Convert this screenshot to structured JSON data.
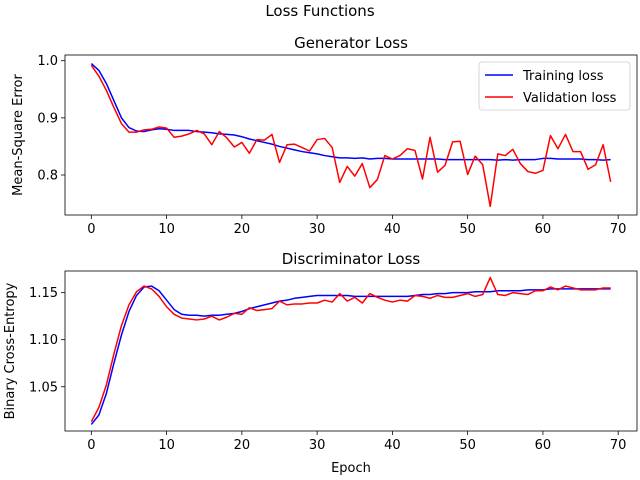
{
  "figure_title": "Loss Functions",
  "chart_data": [
    {
      "type": "line",
      "title": "Generator Loss",
      "xlabel": "",
      "ylabel": "Mean-Square Error",
      "xlim": [
        -3.5,
        72.5
      ],
      "ylim": [
        0.73,
        1.01
      ],
      "xticks": [
        0,
        10,
        20,
        30,
        40,
        50,
        60,
        70
      ],
      "yticks": [
        0.8,
        0.9,
        1.0
      ],
      "ytick_labels": [
        "0.8",
        "0.9",
        "1.0"
      ],
      "grid": false,
      "legend": "top-right",
      "series": [
        {
          "name": "Training loss",
          "color": "#0000ff",
          "x": [
            0,
            1,
            2,
            3,
            4,
            5,
            6,
            7,
            8,
            9,
            10,
            11,
            12,
            13,
            14,
            15,
            16,
            17,
            18,
            19,
            20,
            21,
            22,
            23,
            24,
            25,
            26,
            27,
            28,
            29,
            30,
            31,
            32,
            33,
            34,
            35,
            36,
            37,
            38,
            39,
            40,
            41,
            42,
            43,
            44,
            45,
            46,
            47,
            48,
            49,
            50,
            51,
            52,
            53,
            54,
            55,
            56,
            57,
            58,
            59,
            60,
            61,
            62,
            63,
            64,
            65,
            66,
            67,
            68,
            69
          ],
          "values": [
            0.995,
            0.983,
            0.96,
            0.93,
            0.9,
            0.883,
            0.877,
            0.876,
            0.879,
            0.881,
            0.88,
            0.878,
            0.878,
            0.878,
            0.876,
            0.875,
            0.874,
            0.872,
            0.871,
            0.87,
            0.867,
            0.863,
            0.86,
            0.857,
            0.854,
            0.85,
            0.847,
            0.844,
            0.841,
            0.839,
            0.837,
            0.834,
            0.832,
            0.83,
            0.83,
            0.829,
            0.83,
            0.828,
            0.829,
            0.829,
            0.828,
            0.828,
            0.828,
            0.828,
            0.828,
            0.828,
            0.828,
            0.827,
            0.827,
            0.827,
            0.827,
            0.827,
            0.827,
            0.827,
            0.826,
            0.827,
            0.826,
            0.827,
            0.827,
            0.827,
            0.829,
            0.829,
            0.828,
            0.828,
            0.828,
            0.828,
            0.827,
            0.827,
            0.826,
            0.827
          ]
        },
        {
          "name": "Validation loss",
          "color": "#ff0000",
          "x": [
            0,
            1,
            2,
            3,
            4,
            5,
            6,
            7,
            8,
            9,
            10,
            11,
            12,
            13,
            14,
            15,
            16,
            17,
            18,
            19,
            20,
            21,
            22,
            23,
            24,
            25,
            26,
            27,
            28,
            29,
            30,
            31,
            32,
            33,
            34,
            35,
            36,
            37,
            38,
            39,
            40,
            41,
            42,
            43,
            44,
            45,
            46,
            47,
            48,
            49,
            50,
            51,
            52,
            53,
            54,
            55,
            56,
            57,
            58,
            59,
            60,
            61,
            62,
            63,
            64,
            65,
            66,
            67,
            68,
            69
          ],
          "values": [
            0.992,
            0.973,
            0.948,
            0.918,
            0.89,
            0.875,
            0.875,
            0.879,
            0.88,
            0.884,
            0.882,
            0.866,
            0.868,
            0.872,
            0.878,
            0.872,
            0.853,
            0.876,
            0.865,
            0.849,
            0.857,
            0.838,
            0.862,
            0.861,
            0.871,
            0.822,
            0.853,
            0.854,
            0.848,
            0.842,
            0.862,
            0.864,
            0.848,
            0.787,
            0.815,
            0.798,
            0.82,
            0.778,
            0.792,
            0.834,
            0.828,
            0.834,
            0.846,
            0.843,
            0.793,
            0.866,
            0.805,
            0.817,
            0.858,
            0.859,
            0.801,
            0.833,
            0.818,
            0.745,
            0.837,
            0.834,
            0.845,
            0.82,
            0.806,
            0.803,
            0.808,
            0.869,
            0.846,
            0.871,
            0.841,
            0.841,
            0.81,
            0.818,
            0.853,
            0.788
          ]
        }
      ]
    },
    {
      "type": "line",
      "title": "Discriminator Loss",
      "xlabel": "Epoch",
      "ylabel": "Binary Cross-Entropy",
      "xlim": [
        -3.5,
        72.5
      ],
      "ylim": [
        1.003,
        1.173
      ],
      "xticks": [
        0,
        10,
        20,
        30,
        40,
        50,
        60,
        70
      ],
      "yticks": [
        1.05,
        1.1,
        1.15
      ],
      "ytick_labels": [
        "1.05",
        "1.10",
        "1.15"
      ],
      "grid": false,
      "legend": "none",
      "series": [
        {
          "name": "Training loss",
          "color": "#0000ff",
          "x": [
            0,
            1,
            2,
            3,
            4,
            5,
            6,
            7,
            8,
            9,
            10,
            11,
            12,
            13,
            14,
            15,
            16,
            17,
            18,
            19,
            20,
            21,
            22,
            23,
            24,
            25,
            26,
            27,
            28,
            29,
            30,
            31,
            32,
            33,
            34,
            35,
            36,
            37,
            38,
            39,
            40,
            41,
            42,
            43,
            44,
            45,
            46,
            47,
            48,
            49,
            50,
            51,
            52,
            53,
            54,
            55,
            56,
            57,
            58,
            59,
            60,
            61,
            62,
            63,
            64,
            65,
            66,
            67,
            68,
            69
          ],
          "values": [
            1.01,
            1.02,
            1.043,
            1.075,
            1.105,
            1.13,
            1.147,
            1.156,
            1.157,
            1.152,
            1.142,
            1.132,
            1.127,
            1.126,
            1.126,
            1.125,
            1.126,
            1.126,
            1.127,
            1.128,
            1.13,
            1.133,
            1.135,
            1.137,
            1.139,
            1.141,
            1.142,
            1.144,
            1.145,
            1.146,
            1.147,
            1.147,
            1.147,
            1.147,
            1.147,
            1.146,
            1.146,
            1.146,
            1.146,
            1.146,
            1.146,
            1.146,
            1.146,
            1.147,
            1.148,
            1.148,
            1.149,
            1.149,
            1.15,
            1.15,
            1.15,
            1.151,
            1.151,
            1.151,
            1.152,
            1.152,
            1.152,
            1.152,
            1.153,
            1.153,
            1.153,
            1.154,
            1.154,
            1.154,
            1.154,
            1.154,
            1.154,
            1.154,
            1.154,
            1.154
          ]
        },
        {
          "name": "Validation loss",
          "color": "#ff0000",
          "x": [
            0,
            1,
            2,
            3,
            4,
            5,
            6,
            7,
            8,
            9,
            10,
            11,
            12,
            13,
            14,
            15,
            16,
            17,
            18,
            19,
            20,
            21,
            22,
            23,
            24,
            25,
            26,
            27,
            28,
            29,
            30,
            31,
            32,
            33,
            34,
            35,
            36,
            37,
            38,
            39,
            40,
            41,
            42,
            43,
            44,
            45,
            46,
            47,
            48,
            49,
            50,
            51,
            52,
            53,
            54,
            55,
            56,
            57,
            58,
            59,
            60,
            61,
            62,
            63,
            64,
            65,
            66,
            67,
            68,
            69
          ],
          "values": [
            1.013,
            1.028,
            1.052,
            1.085,
            1.115,
            1.137,
            1.151,
            1.157,
            1.154,
            1.146,
            1.135,
            1.127,
            1.123,
            1.122,
            1.121,
            1.122,
            1.125,
            1.121,
            1.124,
            1.128,
            1.127,
            1.134,
            1.131,
            1.132,
            1.133,
            1.141,
            1.137,
            1.138,
            1.138,
            1.139,
            1.139,
            1.142,
            1.14,
            1.149,
            1.141,
            1.145,
            1.139,
            1.149,
            1.145,
            1.142,
            1.14,
            1.142,
            1.141,
            1.147,
            1.146,
            1.144,
            1.147,
            1.145,
            1.145,
            1.147,
            1.149,
            1.146,
            1.148,
            1.166,
            1.148,
            1.147,
            1.15,
            1.149,
            1.148,
            1.152,
            1.152,
            1.156,
            1.153,
            1.157,
            1.155,
            1.153,
            1.153,
            1.153,
            1.155,
            1.155
          ]
        }
      ]
    }
  ]
}
